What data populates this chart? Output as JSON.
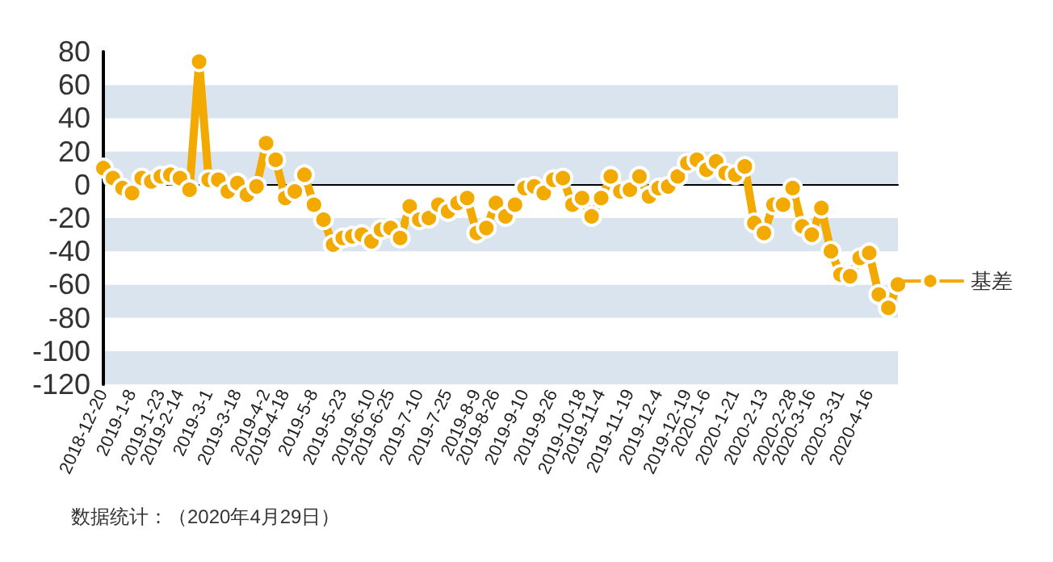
{
  "chart_data": {
    "type": "line",
    "categories": [
      "2018-12-20",
      null,
      null,
      "2019-1-8",
      null,
      null,
      "2019-1-23",
      null,
      "2019-2-14",
      null,
      null,
      "2019-3-1",
      null,
      null,
      "2019-3-18",
      null,
      null,
      "2019-4-2",
      null,
      "2019-4-18",
      null,
      null,
      "2019-5-8",
      null,
      null,
      "2019-5-23",
      null,
      null,
      "2019-6-10",
      null,
      "2019-6-25",
      null,
      null,
      "2019-7-10",
      null,
      null,
      "2019-7-25",
      null,
      null,
      "2019-8-9",
      null,
      "2019-8-26",
      null,
      null,
      "2019-9-10",
      null,
      null,
      "2019-9-26",
      null,
      null,
      "2019-10-18",
      null,
      "2019-11-4",
      null,
      null,
      "2019-11-19",
      null,
      null,
      "2019-12-4",
      null,
      null,
      "2019-12-19",
      null,
      "2020-1-6",
      null,
      null,
      "2020-1-21",
      null,
      null,
      "2020-2-13",
      null,
      null,
      "2020-2-28",
      null,
      "2020-3-16",
      null,
      null,
      "2020-3-31",
      null,
      null,
      "2020-4-16",
      null,
      null,
      null
    ],
    "series": [
      {
        "name": "基差",
        "color": "#f2a900",
        "values": [
          10,
          4,
          -2,
          -5,
          4,
          2,
          5,
          6,
          4,
          -3,
          74,
          3,
          3,
          -4,
          1,
          -6,
          -1,
          25,
          15,
          -8,
          -4,
          6,
          -12,
          -21,
          -36,
          -32,
          -31,
          -30,
          -34,
          -27,
          -26,
          -32,
          -13,
          -21,
          -20,
          -12,
          -16,
          -11,
          -8,
          -29,
          -26,
          -11,
          -19,
          -12,
          -2,
          -1,
          -5,
          3,
          4,
          -12,
          -8,
          -19,
          -8,
          5,
          -4,
          -3,
          5,
          -7,
          -2,
          -1,
          5,
          13,
          15,
          9,
          14,
          7,
          6,
          11,
          -23,
          -29,
          -12,
          -12,
          -2,
          -25,
          -30,
          -14,
          -40,
          -54,
          -55,
          -44,
          -41,
          -66,
          -74,
          -60
        ]
      }
    ],
    "ylim": [
      -120,
      80
    ],
    "yticks": [
      -120,
      -100,
      -80,
      -60,
      -40,
      -20,
      0,
      20,
      40,
      60,
      80
    ],
    "grid": "y",
    "legend": "right",
    "marker": "circle",
    "line_style": "solid",
    "annotations": [
      "数据统计：（2020年4月29日）"
    ]
  }
}
